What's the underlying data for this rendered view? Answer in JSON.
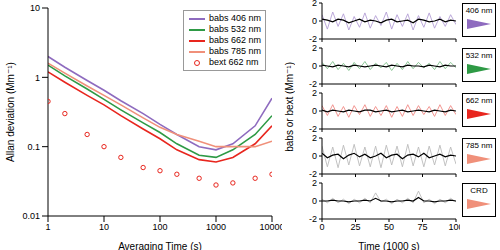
{
  "chart_data": [
    {
      "type": "line",
      "log": true,
      "legend": "upper right",
      "xlabel": "Averaging Time (s)",
      "ylabel": "Allan deviation (Mm⁻¹)",
      "x": [
        1,
        2,
        5,
        10,
        20,
        50,
        100,
        200,
        500,
        1000,
        2000,
        5000,
        10000
      ],
      "xlim": [
        1,
        10000
      ],
      "xticks": [
        1,
        10,
        100,
        1000,
        10000
      ],
      "ylim": [
        0.01,
        10
      ],
      "yticks": [
        0.01,
        0.1,
        1,
        10
      ],
      "series": [
        {
          "name": "babs 406 nm",
          "color": "#8e6bbf",
          "type": "line",
          "values": [
            2.0,
            1.4,
            0.9,
            0.65,
            0.46,
            0.3,
            0.21,
            0.15,
            0.1,
            0.09,
            0.11,
            0.2,
            0.5
          ]
        },
        {
          "name": "babs 532 nm",
          "color": "#2e9a45",
          "type": "line",
          "values": [
            1.5,
            1.05,
            0.68,
            0.48,
            0.34,
            0.22,
            0.16,
            0.11,
            0.075,
            0.07,
            0.09,
            0.15,
            0.28
          ]
        },
        {
          "name": "babs 662 nm",
          "color": "#e8261e",
          "type": "line",
          "values": [
            1.2,
            0.85,
            0.55,
            0.4,
            0.28,
            0.18,
            0.13,
            0.09,
            0.065,
            0.06,
            0.07,
            0.11,
            0.2
          ]
        },
        {
          "name": "babs 785 nm",
          "color": "#f0907a",
          "type": "line",
          "values": [
            1.6,
            1.15,
            0.75,
            0.55,
            0.4,
            0.26,
            0.19,
            0.15,
            0.12,
            0.1,
            0.1,
            0.1,
            0.12
          ]
        },
        {
          "name": "bext 662 nm",
          "color": "#e8261e",
          "type": "scatter",
          "marker": "circle",
          "values": [
            0.45,
            0.3,
            0.15,
            0.1,
            0.07,
            0.05,
            0.045,
            0.04,
            0.035,
            0.028,
            0.03,
            0.035,
            0.04
          ]
        }
      ]
    },
    {
      "type": "line",
      "title": "406 nm",
      "color": "#8e6bbf",
      "tick_labels": "y",
      "x": [
        0,
        4,
        8,
        12,
        16,
        20,
        24,
        28,
        32,
        36,
        40,
        44,
        48,
        52,
        56,
        60,
        64,
        68,
        72,
        76,
        80,
        84,
        88,
        92,
        96,
        100
      ],
      "xlim": [
        0,
        100
      ],
      "xticks": [
        0,
        25,
        50,
        75,
        100
      ],
      "ylim": [
        -2,
        2
      ],
      "yticks": [
        -2,
        0,
        2
      ],
      "series": [
        {
          "color": "#b49fd6",
          "values": [
            0.7,
            -0.9,
            1.0,
            -0.6,
            0.8,
            -1.0,
            0.5,
            -0.7,
            0.9,
            -0.8,
            0.6,
            -0.5,
            1.0,
            -0.9,
            0.7,
            -0.6,
            0.8,
            -1.0,
            0.6,
            -0.7,
            0.9,
            -0.8,
            0.5,
            -0.6,
            0.7,
            -0.4
          ]
        },
        {
          "color": "#000000",
          "values": [
            0.2,
            0.1,
            -0.1,
            0.2,
            0.1,
            -0.2,
            0.0,
            0.2,
            -0.1,
            0.1,
            0.0,
            -0.2,
            0.1,
            0.2,
            -0.1,
            0.0,
            0.1,
            -0.2,
            0.2,
            0.1,
            -0.1,
            0.0,
            0.2,
            -0.1,
            0.1,
            0.0
          ]
        }
      ]
    },
    {
      "type": "line",
      "title": "532 nm",
      "color": "#2e9a45",
      "tick_labels": "y",
      "x": [
        0,
        4,
        8,
        12,
        16,
        20,
        24,
        28,
        32,
        36,
        40,
        44,
        48,
        52,
        56,
        60,
        64,
        68,
        72,
        76,
        80,
        84,
        88,
        92,
        96,
        100
      ],
      "xlim": [
        0,
        100
      ],
      "xticks": [
        0,
        25,
        50,
        75,
        100
      ],
      "ylim": [
        -2,
        2
      ],
      "yticks": [
        -2,
        0,
        2
      ],
      "series": [
        {
          "color": "#7fc08a",
          "values": [
            0.4,
            -0.3,
            0.5,
            -0.4,
            0.3,
            -0.5,
            0.4,
            -0.3,
            0.5,
            -0.4,
            0.3,
            -0.2,
            0.4,
            -0.5,
            0.3,
            -0.4,
            0.5,
            -0.3,
            0.4,
            -0.2,
            0.3,
            -0.4,
            0.5,
            -0.3,
            0.4,
            -0.2
          ]
        },
        {
          "color": "#000000",
          "values": [
            0.1,
            0.0,
            -0.1,
            0.1,
            0.0,
            -0.1,
            0.1,
            0.0,
            -0.1,
            0.0,
            0.1,
            0.0,
            -0.1,
            0.1,
            0.0,
            -0.1,
            0.1,
            0.0,
            0.0,
            -0.1,
            0.1,
            0.0,
            -0.1,
            0.1,
            0.0,
            0.0
          ]
        }
      ]
    },
    {
      "type": "line",
      "title": "662 nm",
      "color": "#e8261e",
      "tick_labels": "y",
      "ylabel": "babs or bext (Mm⁻¹)",
      "x": [
        0,
        4,
        8,
        12,
        16,
        20,
        24,
        28,
        32,
        36,
        40,
        44,
        48,
        52,
        56,
        60,
        64,
        68,
        72,
        76,
        80,
        84,
        88,
        92,
        96,
        100
      ],
      "xlim": [
        0,
        100
      ],
      "xticks": [
        0,
        25,
        50,
        75,
        100
      ],
      "ylim": [
        -2,
        2
      ],
      "yticks": [
        -2,
        0,
        2
      ],
      "series": [
        {
          "color": "#f08a86",
          "values": [
            0.6,
            -0.5,
            0.7,
            -0.6,
            0.5,
            -0.7,
            0.6,
            -0.4,
            0.7,
            -0.6,
            0.5,
            -0.5,
            0.6,
            -0.7,
            0.5,
            -0.6,
            0.7,
            -0.5,
            0.6,
            -0.4,
            0.5,
            -0.6,
            0.7,
            -0.5,
            0.6,
            -0.4
          ]
        },
        {
          "color": "#000000",
          "values": [
            0.1,
            -0.1,
            0.1,
            0.0,
            -0.1,
            0.1,
            0.0,
            -0.1,
            0.1,
            0.1,
            -0.1,
            0.0,
            0.1,
            -0.1,
            0.0,
            0.1,
            -0.1,
            0.0,
            0.1,
            0.0,
            -0.1,
            0.1,
            0.0,
            -0.1,
            0.1,
            0.0
          ]
        }
      ]
    },
    {
      "type": "line",
      "title": "785 nm",
      "color": "#f0907a",
      "tick_labels": "y",
      "x": [
        0,
        4,
        8,
        12,
        16,
        20,
        24,
        28,
        32,
        36,
        40,
        44,
        48,
        52,
        56,
        60,
        64,
        68,
        72,
        76,
        80,
        84,
        88,
        92,
        96,
        100
      ],
      "xlim": [
        0,
        100
      ],
      "xticks": [
        0,
        25,
        50,
        75,
        100
      ],
      "ylim": [
        -2,
        2
      ],
      "yticks": [
        -2,
        0,
        2
      ],
      "series": [
        {
          "color": "#bbbbbb",
          "values": [
            1.1,
            -1.2,
            1.0,
            -1.3,
            1.2,
            -1.0,
            1.3,
            -1.1,
            1.0,
            -1.2,
            1.1,
            -1.3,
            1.2,
            -1.0,
            1.1,
            -1.2,
            1.3,
            -1.1,
            1.0,
            -1.2,
            1.1,
            -1.0,
            1.2,
            -1.1,
            1.0,
            -0.9
          ]
        },
        {
          "color": "#000000",
          "values": [
            0.3,
            -0.2,
            0.1,
            0.2,
            -0.3,
            0.1,
            0.3,
            -0.1,
            0.2,
            -0.2,
            0.0,
            0.3,
            -0.2,
            0.1,
            0.2,
            -0.3,
            0.1,
            0.2,
            -0.1,
            0.3,
            -0.2,
            0.0,
            0.2,
            -0.1,
            0.1,
            0.0
          ]
        }
      ]
    },
    {
      "type": "line",
      "title": "CRD",
      "color": "#f0907a",
      "xlabel": "Time (1000 s)",
      "x": [
        0,
        4,
        8,
        12,
        16,
        20,
        24,
        28,
        32,
        36,
        40,
        44,
        48,
        52,
        56,
        60,
        64,
        68,
        72,
        76,
        80,
        84,
        88,
        92,
        96,
        100
      ],
      "xlim": [
        0,
        100
      ],
      "xticks": [
        0,
        25,
        50,
        75,
        100
      ],
      "ylim": [
        -2,
        2
      ],
      "yticks": [
        -2,
        0,
        2
      ],
      "series": [
        {
          "color": "#bbbbbb",
          "values": [
            0.2,
            -0.2,
            0.3,
            -0.2,
            0.2,
            -0.3,
            0.2,
            -0.2,
            0.3,
            -0.2,
            0.9,
            -0.1,
            0.2,
            -0.3,
            0.2,
            -0.2,
            0.3,
            -0.2,
            1.1,
            -0.2,
            0.2,
            -0.3,
            0.2,
            -0.2,
            0.3,
            -0.1
          ]
        },
        {
          "color": "#000000",
          "values": [
            0.0,
            0.0,
            0.1,
            0.0,
            0.0,
            -0.1,
            0.0,
            0.0,
            0.1,
            0.0,
            0.3,
            0.0,
            0.0,
            -0.1,
            0.0,
            0.0,
            0.1,
            0.0,
            0.4,
            0.0,
            0.0,
            -0.1,
            0.0,
            0.0,
            0.1,
            0.0
          ]
        }
      ]
    }
  ]
}
